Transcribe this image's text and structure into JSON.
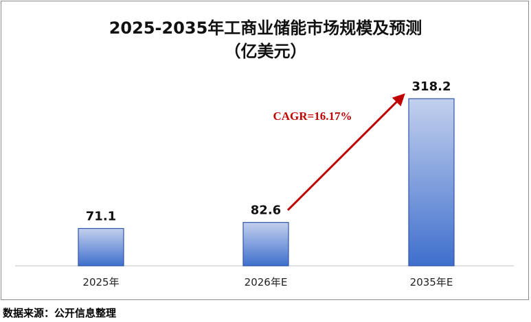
{
  "chart_data": {
    "type": "bar",
    "title": "2025-2035年工商业储能市场规模及预测",
    "subtitle": "（亿美元）",
    "categories": [
      "2025年",
      "2026年E",
      "2035年E"
    ],
    "values": [
      71.1,
      82.6,
      318.2
    ],
    "value_labels": [
      "71.1",
      "82.6",
      "318.2"
    ],
    "ylim": [
      0,
      360
    ],
    "grid": false,
    "legend": "none",
    "annotation": {
      "text": "CAGR=16.17%",
      "from": "2026年E",
      "to": "2035年E",
      "color": "#c00000"
    },
    "colors": {
      "bar_top": "#c3d0ee",
      "bar_bottom": "#3f6fcc",
      "bar_edge": "#2f55a8",
      "arrow": "#c00000"
    }
  },
  "source_text": "数据来源：公开信息整理"
}
